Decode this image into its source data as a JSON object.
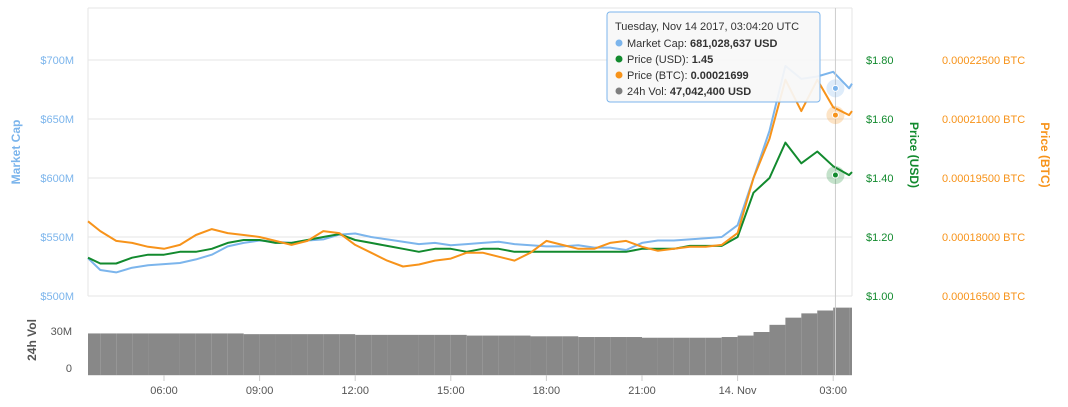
{
  "chart_data": {
    "type": "line",
    "x_tick_labels": [
      "06:00",
      "09:00",
      "12:00",
      "15:00",
      "18:00",
      "21:00",
      "14. Nov",
      "03:00"
    ],
    "axes": {
      "market_cap": {
        "title": "Market Cap",
        "ticks": [
          "$500M",
          "$550M",
          "$600M",
          "$650M",
          "$700M"
        ],
        "range": [
          500,
          700
        ],
        "unit": "M USD",
        "color": "#7cb5ec"
      },
      "price_usd": {
        "title": "Price (USD)",
        "ticks": [
          "$1.00",
          "$1.20",
          "$1.40",
          "$1.60",
          "$1.80"
        ],
        "range": [
          1.0,
          1.8
        ],
        "color": "#128a2e"
      },
      "price_btc": {
        "title": "Price (BTC)",
        "ticks": [
          "0.00016500 BTC",
          "0.00018000 BTC",
          "0.00019500 BTC",
          "0.00021000 BTC",
          "0.00022500 BTC"
        ],
        "range": [
          0.000165,
          0.000225
        ],
        "color": "#f7931a"
      },
      "volume": {
        "title": "24h Vol",
        "ticks": [
          "0",
          "30M"
        ],
        "range": [
          0,
          30
        ],
        "unit": "M",
        "color": "#7f7f7f"
      }
    },
    "time_hours": [
      3.5,
      4,
      4.5,
      5,
      5.5,
      6,
      6.5,
      7,
      7.5,
      8,
      8.5,
      9,
      9.5,
      10,
      10.5,
      11,
      11.5,
      12,
      12.5,
      13,
      13.5,
      14,
      14.5,
      15,
      15.5,
      16,
      16.5,
      17,
      17.5,
      18,
      18.5,
      19,
      19.5,
      20,
      20.5,
      21,
      21.5,
      22,
      22.5,
      23,
      23.5,
      24,
      24.5,
      25,
      25.5,
      26,
      26.5,
      27,
      27.5,
      28
    ],
    "series": [
      {
        "name": "Market Cap",
        "axis": "market_cap",
        "color": "#7cb5ec",
        "values": [
          532,
          522,
          520,
          524,
          526,
          527,
          528,
          531,
          535,
          542,
          545,
          547,
          546,
          545,
          547,
          548,
          552,
          553,
          550,
          548,
          546,
          544,
          545,
          543,
          544,
          545,
          546,
          544,
          543,
          542,
          542,
          543,
          541,
          541,
          539,
          545,
          547,
          547,
          548,
          549,
          550,
          560,
          600,
          640,
          695,
          684,
          686,
          690,
          676,
          680
        ]
      },
      {
        "name": "Price (USD)",
        "axis": "price_usd",
        "color": "#128a2e",
        "values": [
          1.13,
          1.11,
          1.11,
          1.13,
          1.14,
          1.14,
          1.15,
          1.15,
          1.16,
          1.18,
          1.19,
          1.19,
          1.18,
          1.18,
          1.19,
          1.2,
          1.21,
          1.19,
          1.18,
          1.17,
          1.16,
          1.15,
          1.16,
          1.16,
          1.15,
          1.16,
          1.16,
          1.15,
          1.15,
          1.15,
          1.15,
          1.15,
          1.15,
          1.15,
          1.15,
          1.16,
          1.16,
          1.16,
          1.17,
          1.17,
          1.17,
          1.2,
          1.35,
          1.4,
          1.52,
          1.45,
          1.49,
          1.44,
          1.41,
          1.42
        ]
      },
      {
        "name": "Price (BTC)",
        "axis": "price_btc",
        "color": "#f7931a",
        "values": [
          0.000184,
          0.0001815,
          0.000179,
          0.0001785,
          0.0001775,
          0.000177,
          0.000178,
          0.0001805,
          0.000182,
          0.000181,
          0.0001805,
          0.00018,
          0.000179,
          0.000178,
          0.000179,
          0.0001815,
          0.000181,
          0.000178,
          0.000176,
          0.000174,
          0.0001725,
          0.000173,
          0.000174,
          0.0001745,
          0.000176,
          0.000176,
          0.000175,
          0.000174,
          0.000176,
          0.000179,
          0.000178,
          0.000177,
          0.000177,
          0.0001785,
          0.000179,
          0.0001775,
          0.0001765,
          0.000177,
          0.0001775,
          0.0001775,
          0.000178,
          0.000181,
          0.000195,
          0.000205,
          0.00022,
          0.000212,
          0.00022,
          0.000213,
          0.000211,
          0.000212
        ]
      },
      {
        "name": "24h Vol",
        "axis": "volume",
        "color": "#7f7f7f",
        "kind": "column",
        "values": [
          29,
          29,
          29,
          29,
          29,
          29,
          29,
          29,
          29,
          29,
          28.5,
          28.5,
          28.5,
          28.5,
          28.5,
          28.5,
          28.5,
          28,
          28,
          28,
          28,
          28,
          28,
          28,
          27.5,
          27.5,
          27.5,
          27.5,
          27,
          27,
          27,
          26.5,
          26.5,
          26.5,
          26.5,
          26,
          26,
          26,
          26,
          26,
          26.5,
          27.5,
          30,
          35,
          40,
          43,
          45,
          47,
          47,
          47
        ]
      }
    ],
    "tooltip": {
      "header": "Tuesday, Nov 14 2017, 03:04:20 UTC",
      "rows": [
        {
          "label": "Market Cap:",
          "value": "681,028,637 USD",
          "color": "#7cb5ec"
        },
        {
          "label": "Price (USD):",
          "value": "1.45",
          "color": "#128a2e"
        },
        {
          "label": "Price (BTC):",
          "value": "0.00021699",
          "color": "#f7931a"
        },
        {
          "label": "24h Vol:",
          "value": "47,042,400 USD",
          "color": "#7f7f7f"
        }
      ]
    },
    "crosshair_hour": 27.07,
    "grid": "horizontal",
    "legend": "none"
  }
}
